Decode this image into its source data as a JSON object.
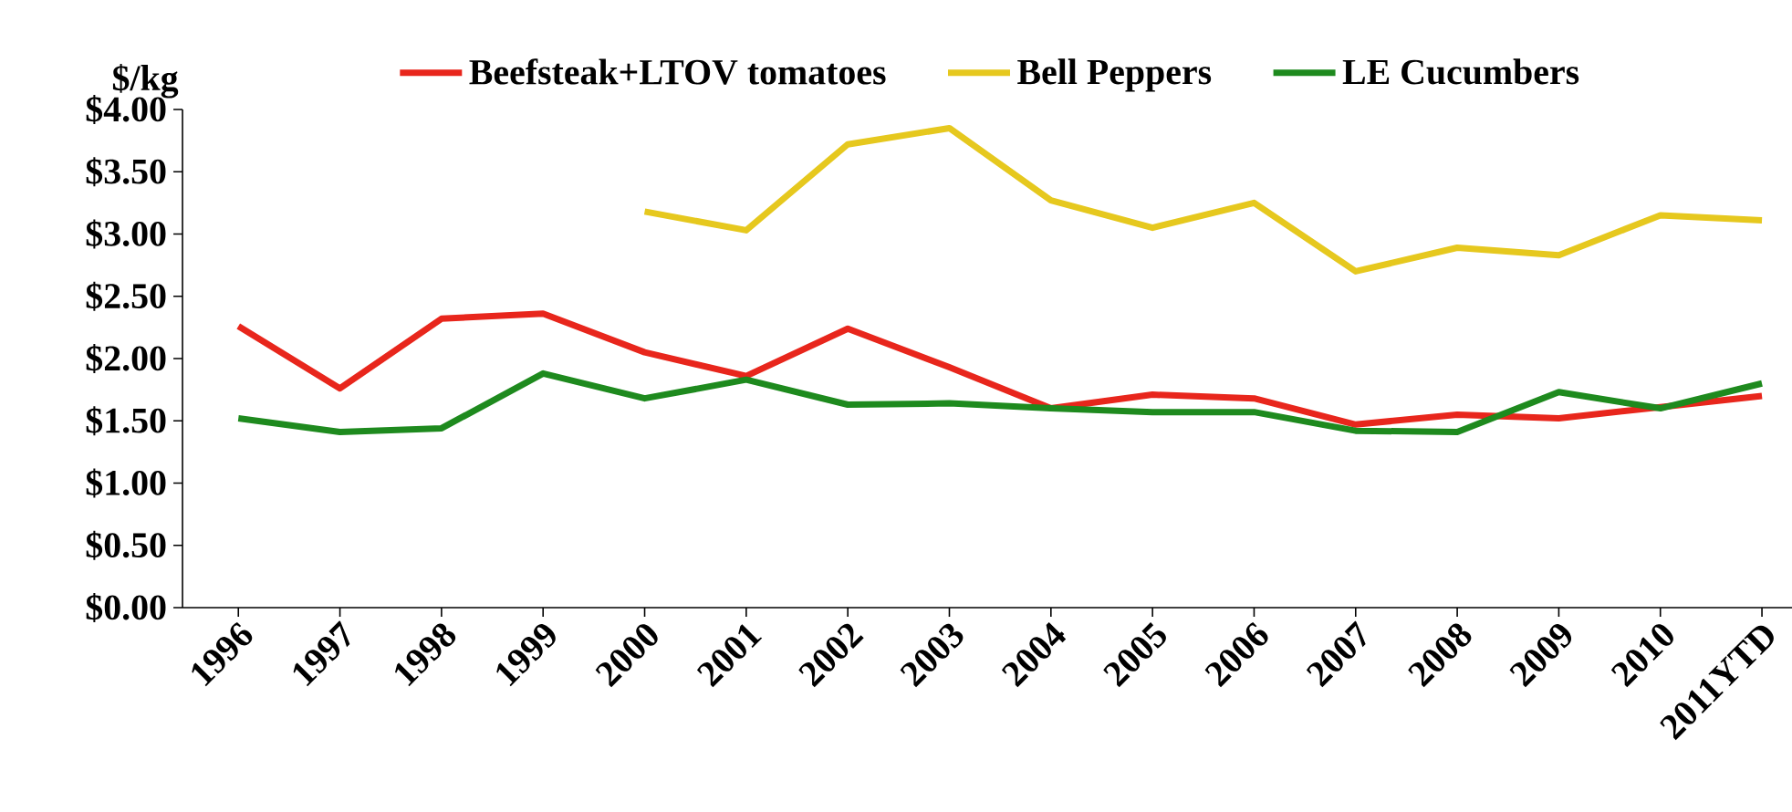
{
  "chart_data": {
    "type": "line",
    "ylabel": "$/kg",
    "categories": [
      "1996",
      "1997",
      "1998",
      "1999",
      "2000",
      "2001",
      "2002",
      "2003",
      "2004",
      "2005",
      "2006",
      "2007",
      "2008",
      "2009",
      "2010",
      "2011YTD"
    ],
    "series": [
      {
        "name": "Beefsteak+LTOV tomatoes",
        "color": "#e8261c",
        "values": [
          2.26,
          1.76,
          2.32,
          2.36,
          2.05,
          1.86,
          2.24,
          1.93,
          1.6,
          1.71,
          1.68,
          1.47,
          1.55,
          1.52,
          1.61,
          1.7
        ]
      },
      {
        "name": "Bell Peppers",
        "color": "#e6c81e",
        "values": [
          null,
          null,
          null,
          null,
          3.18,
          3.03,
          3.72,
          3.85,
          3.27,
          3.05,
          3.25,
          2.7,
          2.89,
          2.83,
          3.15,
          3.11
        ]
      },
      {
        "name": "LE Cucumbers",
        "color": "#1e8a1e",
        "values": [
          1.52,
          1.41,
          1.44,
          1.88,
          1.68,
          1.83,
          1.63,
          1.64,
          1.6,
          1.57,
          1.57,
          1.42,
          1.41,
          1.73,
          1.6,
          1.8
        ]
      }
    ],
    "ylim": [
      0,
      4
    ],
    "yticks": [
      {
        "value": 0,
        "label": "$0.00"
      },
      {
        "value": 0.5,
        "label": "$0.50"
      },
      {
        "value": 1,
        "label": "$1.00"
      },
      {
        "value": 1.5,
        "label": "$1.50"
      },
      {
        "value": 2,
        "label": "$2.00"
      },
      {
        "value": 2.5,
        "label": "$2.50"
      },
      {
        "value": 3,
        "label": "$3.00"
      },
      {
        "value": 3.5,
        "label": "$3.50"
      },
      {
        "value": 4,
        "label": "$4.00"
      }
    ],
    "grid": false,
    "legend": "top",
    "marker": "none",
    "line_style": "solid"
  }
}
